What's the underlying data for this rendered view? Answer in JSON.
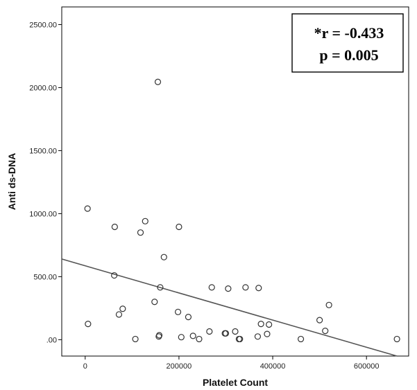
{
  "chart_data": {
    "type": "scatter",
    "xlabel": "Platelet Count",
    "ylabel": "Anti ds-DNA",
    "xlim": [
      -50000,
      690000
    ],
    "ylim": [
      -130,
      2640
    ],
    "x_ticks": [
      0,
      200000,
      400000,
      600000
    ],
    "x_tick_labels": [
      "0",
      "200000",
      "400000",
      "600000"
    ],
    "y_ticks": [
      0,
      500,
      1000,
      1500,
      2000,
      2500
    ],
    "y_tick_labels": [
      ".00",
      "500.00",
      "1000.00",
      "1500.00",
      "2000.00",
      "2500.00"
    ],
    "grid": false,
    "annotation": {
      "lines": [
        "*r = -0.433",
        "p = 0.005"
      ],
      "placement": "top-right"
    },
    "fit_line": {
      "x": [
        -50000,
        665000
      ],
      "y": [
        640,
        -130
      ]
    },
    "points": {
      "x": [
        5000,
        6000,
        62000,
        63000,
        72000,
        80000,
        107000,
        118000,
        128000,
        148000,
        155000,
        157000,
        158000,
        160000,
        168000,
        198000,
        200000,
        205000,
        220000,
        230000,
        243000,
        265000,
        270000,
        298000,
        300000,
        305000,
        320000,
        328000,
        330000,
        342000,
        368000,
        370000,
        375000,
        388000,
        392000,
        460000,
        500000,
        512000,
        520000,
        665000
      ],
      "y": [
        1040,
        125,
        510,
        895,
        200,
        245,
        5,
        850,
        940,
        300,
        2045,
        25,
        35,
        415,
        655,
        220,
        895,
        20,
        180,
        30,
        5,
        65,
        415,
        50,
        50,
        405,
        65,
        5,
        5,
        415,
        25,
        410,
        125,
        45,
        120,
        5,
        155,
        70,
        275,
        5
      ]
    }
  }
}
